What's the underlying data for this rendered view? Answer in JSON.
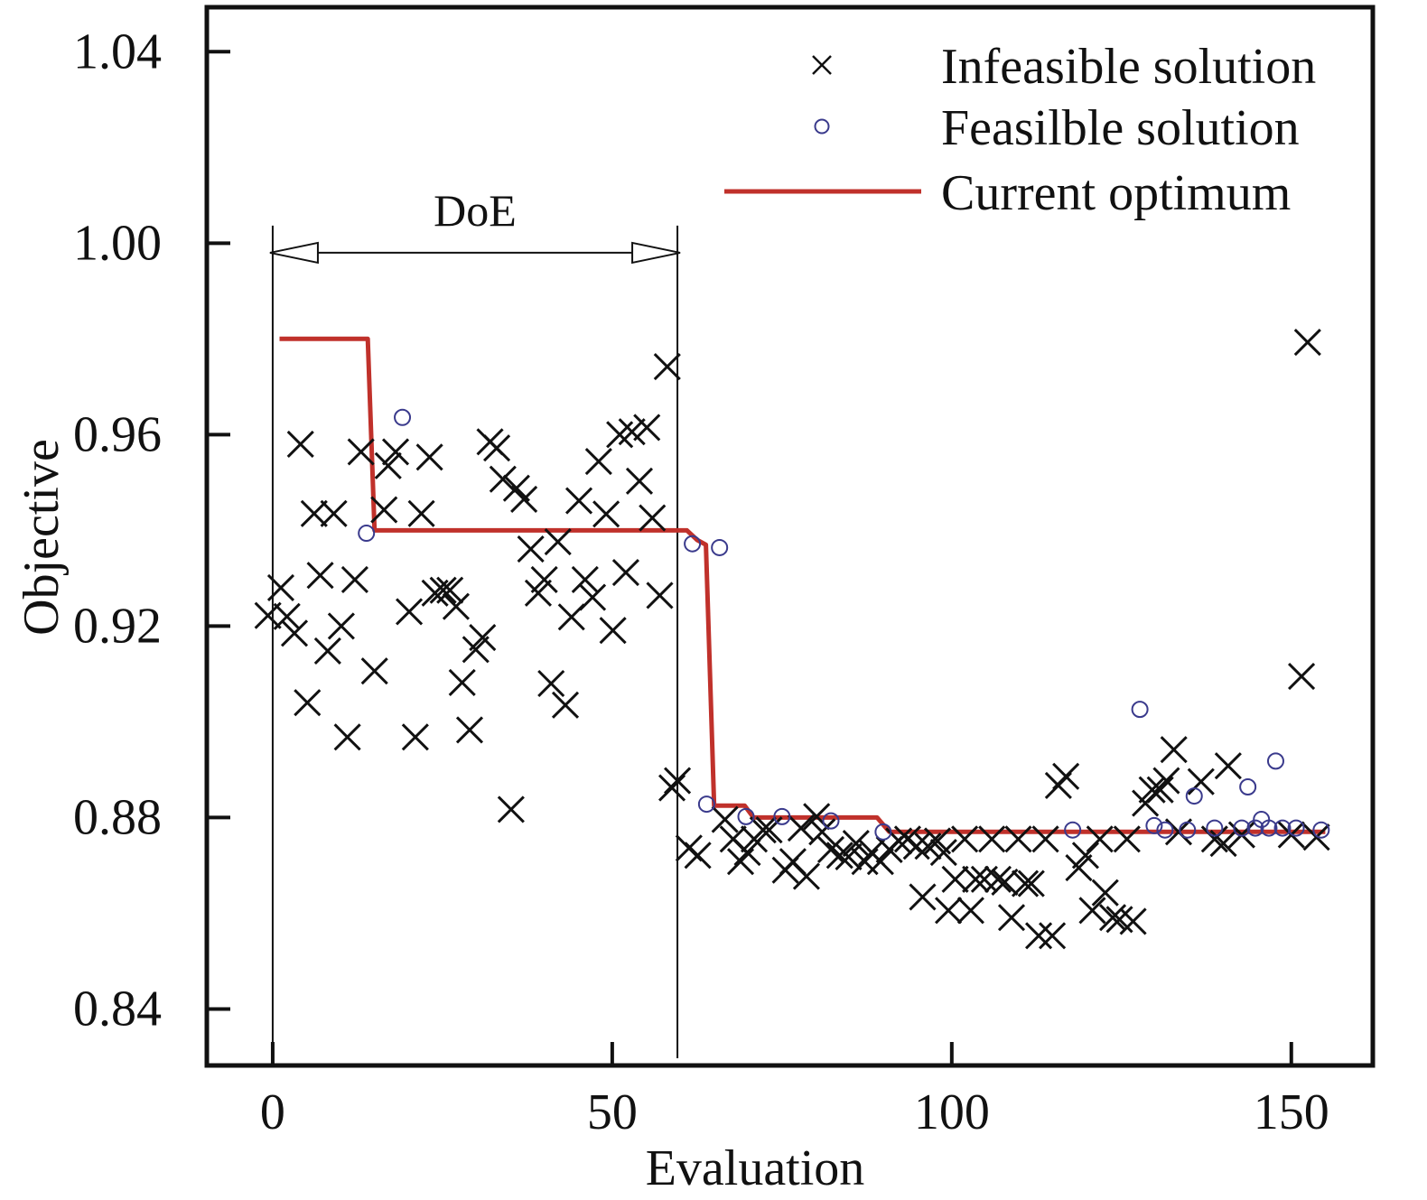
{
  "chart_data": {
    "type": "scatter",
    "title": "",
    "xlabel": "Evaluation",
    "ylabel": "Objective",
    "xlim": [
      -9.7,
      162
    ],
    "ylim": [
      0.8282,
      1.0493
    ],
    "x_ticks": [
      0,
      50,
      100,
      150
    ],
    "x_tick_labels": [
      "0",
      "50",
      "100",
      "150"
    ],
    "y_ticks": [
      0.84,
      0.88,
      0.92,
      0.96,
      1.0,
      1.04
    ],
    "y_tick_labels": [
      "0.84",
      "0.88",
      "0.92",
      "0.96",
      "1.00",
      "1.04"
    ],
    "grid": false,
    "legend_position": "top-right",
    "annotation": {
      "label": "DoE",
      "x_start": 0,
      "x_end": 59.6,
      "y": 0.998
    },
    "series": [
      {
        "name": "Infeasible solution",
        "marker": "x",
        "color": "#111111",
        "points": [
          [
            -0.7,
            0.9222
          ],
          [
            1.2,
            0.928
          ],
          [
            2.1,
            0.922
          ],
          [
            3.2,
            0.9185
          ],
          [
            4.1,
            0.958
          ],
          [
            5.1,
            0.904
          ],
          [
            6.1,
            0.9435
          ],
          [
            7.0,
            0.9306
          ],
          [
            8.1,
            0.9148
          ],
          [
            9.0,
            0.9435
          ],
          [
            10.1,
            0.92
          ],
          [
            11.0,
            0.8968
          ],
          [
            12.1,
            0.9297
          ],
          [
            13.0,
            0.9564
          ],
          [
            15.0,
            0.9106
          ],
          [
            16.4,
            0.9443
          ],
          [
            17.0,
            0.9535
          ],
          [
            18.1,
            0.9564
          ],
          [
            20.1,
            0.923
          ],
          [
            21.0,
            0.8968
          ],
          [
            21.9,
            0.9435
          ],
          [
            23.1,
            0.9553
          ],
          [
            23.9,
            0.9269
          ],
          [
            25.1,
            0.9275
          ],
          [
            26.1,
            0.9275
          ],
          [
            27.0,
            0.9241
          ],
          [
            27.9,
            0.9082
          ],
          [
            29.0,
            0.8983
          ],
          [
            29.9,
            0.9151
          ],
          [
            30.9,
            0.9176
          ],
          [
            32.0,
            0.9585
          ],
          [
            33.0,
            0.9572
          ],
          [
            33.9,
            0.9507
          ],
          [
            35.1,
            0.8817
          ],
          [
            35.9,
            0.9488
          ],
          [
            37.0,
            0.9465
          ],
          [
            38.0,
            0.9361
          ],
          [
            39.1,
            0.9269
          ],
          [
            40.0,
            0.9297
          ],
          [
            41.0,
            0.908
          ],
          [
            42.0,
            0.9376
          ],
          [
            43.1,
            0.9035
          ],
          [
            44.0,
            0.9219
          ],
          [
            45.1,
            0.9462
          ],
          [
            46.0,
            0.9297
          ],
          [
            47.1,
            0.926
          ],
          [
            48.0,
            0.9544
          ],
          [
            49.1,
            0.9434
          ],
          [
            50.1,
            0.9191
          ],
          [
            51.1,
            0.96
          ],
          [
            52.0,
            0.9312
          ],
          [
            52.9,
            0.9606
          ],
          [
            54.0,
            0.9503
          ],
          [
            55.1,
            0.9615
          ],
          [
            55.9,
            0.9426
          ],
          [
            57.0,
            0.9264
          ],
          [
            58.1,
            0.9742
          ],
          [
            58.8,
            0.8862
          ],
          [
            59.6,
            0.8877
          ],
          [
            61.3,
            0.8736
          ],
          [
            62.6,
            0.8721
          ],
          [
            66.6,
            0.8796
          ],
          [
            67.8,
            0.8755
          ],
          [
            68.9,
            0.8708
          ],
          [
            69.9,
            0.8727
          ],
          [
            70.9,
            0.8755
          ],
          [
            72.2,
            0.8774
          ],
          [
            73.1,
            0.8774
          ],
          [
            75.5,
            0.869
          ],
          [
            76.6,
            0.8708
          ],
          [
            77.8,
            0.8778
          ],
          [
            78.6,
            0.8677
          ],
          [
            80.1,
            0.8802
          ],
          [
            80.9,
            0.877
          ],
          [
            82.2,
            0.8733
          ],
          [
            83.5,
            0.8721
          ],
          [
            84.8,
            0.8718
          ],
          [
            85.9,
            0.8746
          ],
          [
            87.2,
            0.8708
          ],
          [
            88.2,
            0.8727
          ],
          [
            89.5,
            0.8708
          ],
          [
            90.8,
            0.8733
          ],
          [
            92.2,
            0.8751
          ],
          [
            93.5,
            0.8755
          ],
          [
            94.8,
            0.874
          ],
          [
            95.7,
            0.8634
          ],
          [
            96.5,
            0.874
          ],
          [
            97.9,
            0.8751
          ],
          [
            98.8,
            0.8727
          ],
          [
            99.5,
            0.8606
          ],
          [
            100.5,
            0.8671
          ],
          [
            101.9,
            0.8755
          ],
          [
            102.8,
            0.8606
          ],
          [
            103.5,
            0.8671
          ],
          [
            104.8,
            0.8671
          ],
          [
            105.9,
            0.8755
          ],
          [
            106.8,
            0.8671
          ],
          [
            107.8,
            0.8665
          ],
          [
            108.8,
            0.8591
          ],
          [
            109.8,
            0.8755
          ],
          [
            110.8,
            0.8662
          ],
          [
            111.7,
            0.8662
          ],
          [
            112.8,
            0.8553
          ],
          [
            113.8,
            0.8755
          ],
          [
            114.8,
            0.8553
          ],
          [
            115.7,
            0.8867
          ],
          [
            116.8,
            0.8886
          ],
          [
            118.7,
            0.8695
          ],
          [
            119.7,
            0.8721
          ],
          [
            120.7,
            0.8606
          ],
          [
            121.8,
            0.8755
          ],
          [
            122.6,
            0.8643
          ],
          [
            123.7,
            0.8591
          ],
          [
            124.7,
            0.8587
          ],
          [
            125.8,
            0.8755
          ],
          [
            126.7,
            0.8583
          ],
          [
            128.5,
            0.883
          ],
          [
            129.5,
            0.8858
          ],
          [
            130.7,
            0.8858
          ],
          [
            131.6,
            0.8877
          ],
          [
            132.7,
            0.8942
          ],
          [
            133.4,
            0.877
          ],
          [
            136.7,
            0.8875
          ],
          [
            138.7,
            0.8755
          ],
          [
            140.0,
            0.8746
          ],
          [
            140.7,
            0.8908
          ],
          [
            142.7,
            0.8764
          ],
          [
            150.0,
            0.8764
          ],
          [
            151.5,
            0.9095
          ],
          [
            152.4,
            0.9793
          ],
          [
            153.7,
            0.8759
          ]
        ]
      },
      {
        "name": "Feasilble solution",
        "marker": "o",
        "color": "#3a3a8c",
        "points": [
          [
            13.8,
            0.9394
          ],
          [
            19.1,
            0.9636
          ],
          [
            61.8,
            0.9372
          ],
          [
            65.8,
            0.9364
          ],
          [
            63.9,
            0.8828
          ],
          [
            69.7,
            0.8802
          ],
          [
            75.0,
            0.8802
          ],
          [
            82.2,
            0.8793
          ],
          [
            89.9,
            0.877
          ],
          [
            117.8,
            0.8774
          ],
          [
            127.7,
            0.9026
          ],
          [
            129.8,
            0.8783
          ],
          [
            131.4,
            0.8774
          ],
          [
            135.7,
            0.8845
          ],
          [
            134.7,
            0.8774
          ],
          [
            138.7,
            0.8778
          ],
          [
            142.7,
            0.8778
          ],
          [
            143.6,
            0.8864
          ],
          [
            144.7,
            0.8778
          ],
          [
            145.6,
            0.8796
          ],
          [
            146.7,
            0.8778
          ],
          [
            147.7,
            0.8918
          ],
          [
            148.7,
            0.8778
          ],
          [
            150.7,
            0.8778
          ],
          [
            154.4,
            0.8774
          ]
        ]
      },
      {
        "name": "Current optimum",
        "marker": "line",
        "color": "#c0312b",
        "points": [
          [
            1,
            0.98
          ],
          [
            14,
            0.98
          ],
          [
            15,
            0.94
          ],
          [
            61,
            0.94
          ],
          [
            62.5,
            0.938
          ],
          [
            63.8,
            0.937
          ],
          [
            65,
            0.8825
          ],
          [
            69.5,
            0.8825
          ],
          [
            70.8,
            0.88
          ],
          [
            89,
            0.88
          ],
          [
            90.8,
            0.877
          ],
          [
            155,
            0.877
          ]
        ]
      }
    ]
  }
}
